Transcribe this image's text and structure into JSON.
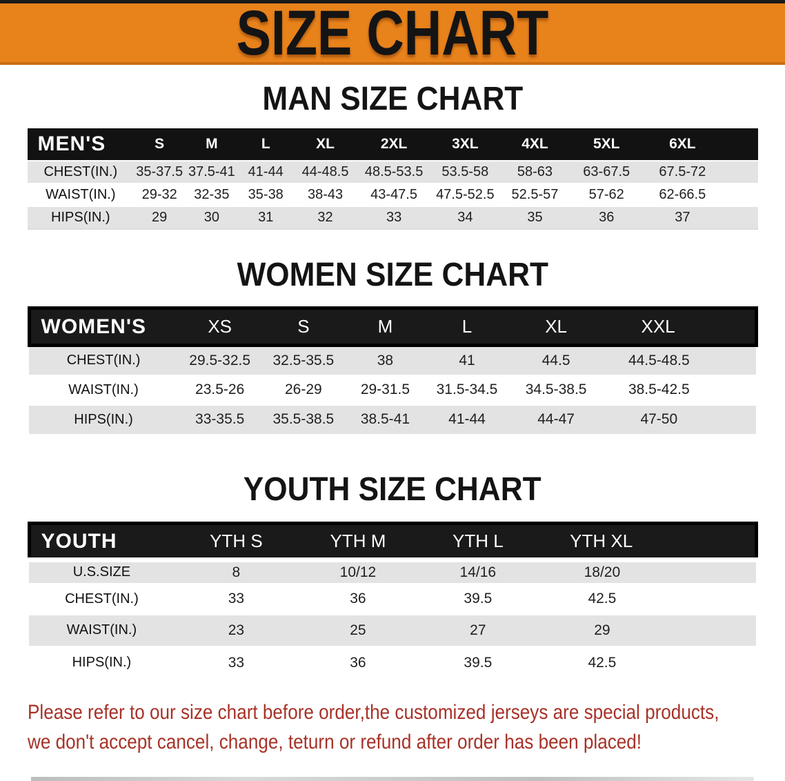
{
  "banner": {
    "title": "SIZE CHART"
  },
  "colors": {
    "banner_orange": "#E8821B",
    "header_band_black": "#141414",
    "row_gray": "#e3e3e3",
    "note_red": "#A73228"
  },
  "sections": {
    "men": {
      "heading": "MAN SIZE CHART",
      "table": {
        "label": "MEN'S",
        "columns": [
          "S",
          "M",
          "L",
          "XL",
          "2XL",
          "3XL",
          "4XL",
          "5XL",
          "6XL"
        ],
        "rows": [
          {
            "label": "CHEST(IN.)",
            "values": [
              "35-37.5",
              "37.5-41",
              "41-44",
              "44-48.5",
              "48.5-53.5",
              "53.5-58",
              "58-63",
              "63-67.5",
              "67.5-72"
            ]
          },
          {
            "label": "WAIST(IN.)",
            "values": [
              "29-32",
              "32-35",
              "35-38",
              "38-43",
              "43-47.5",
              "47.5-52.5",
              "52.5-57",
              "57-62",
              "62-66.5"
            ]
          },
          {
            "label": "HIPS(IN.)",
            "values": [
              "29",
              "30",
              "31",
              "32",
              "33",
              "34",
              "35",
              "36",
              "37"
            ]
          }
        ]
      }
    },
    "women": {
      "heading": "WOMEN SIZE CHART",
      "table": {
        "label": "WOMEN'S",
        "columns": [
          "XS",
          "S",
          "M",
          "L",
          "XL",
          "XXL"
        ],
        "rows": [
          {
            "label": "CHEST(IN.)",
            "values": [
              "29.5-32.5",
              "32.5-35.5",
              "38",
              "41",
              "44.5",
              "44.5-48.5"
            ]
          },
          {
            "label": "WAIST(IN.)",
            "values": [
              "23.5-26",
              "26-29",
              "29-31.5",
              "31.5-34.5",
              "34.5-38.5",
              "38.5-42.5"
            ]
          },
          {
            "label": "HIPS(IN.)",
            "values": [
              "33-35.5",
              "35.5-38.5",
              "38.5-41",
              "41-44",
              "44-47",
              "47-50"
            ]
          }
        ]
      }
    },
    "youth": {
      "heading": "YOUTH SIZE CHART",
      "table": {
        "label": "YOUTH",
        "columns": [
          "YTH S",
          "YTH M",
          "YTH L",
          "YTH XL"
        ],
        "rows": [
          {
            "label": "U.S.SIZE",
            "values": [
              "8",
              "10/12",
              "14/16",
              "18/20"
            ]
          },
          {
            "label": "CHEST(IN.)",
            "values": [
              "33",
              "36",
              "39.5",
              "42.5"
            ]
          },
          {
            "label": "WAIST(IN.)",
            "values": [
              "23",
              "25",
              "27",
              "29"
            ]
          },
          {
            "label": "HIPS(IN.)",
            "values": [
              "33",
              "36",
              "39.5",
              "42.5"
            ]
          }
        ]
      }
    }
  },
  "footer_note": {
    "line1": "Please refer to our size chart before order,the customized jerseys are special products,",
    "line2": "we don't accept cancel, change, teturn or refund after order has been placed!"
  }
}
